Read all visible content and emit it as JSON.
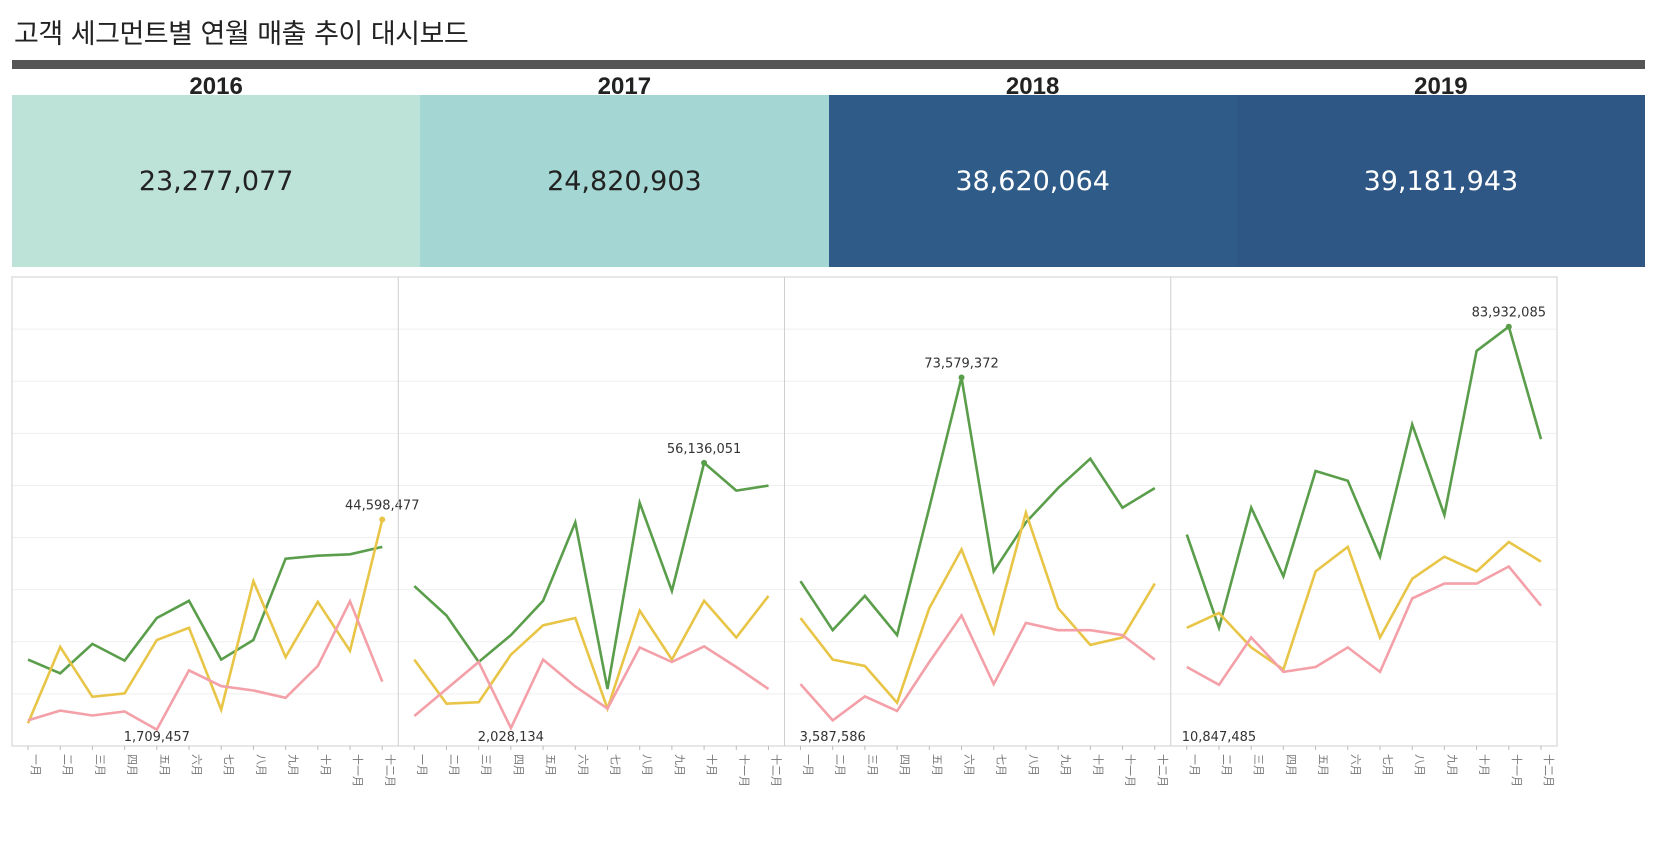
{
  "title": "고객 세그먼트별 연월 매출 추이 대시보드",
  "colors": {
    "topbar": "#555555",
    "kpi_bg": [
      "#bde3d9",
      "#a4d6d3",
      "#2e5b87",
      "#2e5785"
    ],
    "kpi_text": [
      "#222222",
      "#222222",
      "#ffffff",
      "#ffffff"
    ],
    "series": [
      "#5a9e4b",
      "#e8c547",
      "#f4a0a8"
    ]
  },
  "kpis": [
    {
      "year": "2016",
      "value": "23,277,077"
    },
    {
      "year": "2017",
      "value": "24,820,903"
    },
    {
      "year": "2018",
      "value": "38,620,064"
    },
    {
      "year": "2019",
      "value": "39,181,943"
    }
  ],
  "chart_data": {
    "type": "line",
    "ylim": [
      0,
      90000000
    ],
    "grid": "horizontal",
    "months": [
      "一月",
      "二月",
      "三月",
      "四月",
      "五月",
      "六月",
      "七月",
      "八月",
      "九月",
      "十月",
      "十一月",
      "十二月"
    ],
    "panels": [
      {
        "year": "2016",
        "series": [
          {
            "color": "green",
            "values": [
              16000000,
              13200000,
              19200000,
              15800000,
              24500000,
              28000000,
              16000000,
              20000000,
              36600000,
              37200000,
              37500000,
              39000000
            ]
          },
          {
            "color": "yellow",
            "values": [
              3000000,
              18600000,
              8400000,
              9100000,
              20000000,
              22500000,
              5800000,
              32000000,
              16500000,
              27800000,
              17800000,
              44598477
            ]
          },
          {
            "color": "pink",
            "values": [
              3600000,
              5600000,
              4600000,
              5400000,
              1709457,
              13800000,
              10600000,
              9700000,
              8200000,
              14700000,
              27900000,
              11500000
            ]
          }
        ],
        "labels": [
          {
            "text": "44,598,477",
            "series": 1,
            "month": 11
          },
          {
            "text": "1,709,457",
            "series": 2,
            "month": 4
          }
        ]
      },
      {
        "year": "2017",
        "series": [
          {
            "color": "green",
            "values": [
              31000000,
              25000000,
              15500000,
              21000000,
              28000000,
              44000000,
              10000000,
              48000000,
              30000000,
              56136051,
              50500000,
              51500000
            ]
          },
          {
            "color": "yellow",
            "values": [
              16000000,
              7000000,
              7300000,
              17000000,
              23000000,
              24500000,
              6000000,
              26000000,
              16000000,
              28000000,
              20500000,
              29000000
            ]
          },
          {
            "color": "pink",
            "values": [
              4500000,
              10000000,
              15500000,
              2028134,
              16000000,
              10500000,
              6000000,
              18500000,
              15500000,
              18700000,
              14500000,
              10000000
            ]
          }
        ],
        "labels": [
          {
            "text": "56,136,051",
            "series": 0,
            "month": 9
          },
          {
            "text": "2,028,134",
            "series": 2,
            "month": 3
          }
        ]
      },
      {
        "year": "2018",
        "series": [
          {
            "color": "green",
            "values": [
              32000000,
              22000000,
              29000000,
              21000000,
              47000000,
              73579372,
              34000000,
              44000000,
              51000000,
              57000000,
              47000000,
              51000000
            ]
          },
          {
            "color": "yellow",
            "values": [
              24500000,
              16000000,
              14700000,
              7200000,
              26500000,
              38500000,
              21500000,
              46000000,
              26500000,
              19000000,
              20500000,
              31500000
            ]
          },
          {
            "color": "pink",
            "values": [
              11000000,
              3587586,
              8500000,
              5500000,
              15500000,
              25000000,
              11000000,
              23500000,
              22000000,
              22000000,
              21000000,
              16000000
            ]
          }
        ],
        "labels": [
          {
            "text": "73,579,372",
            "series": 0,
            "month": 5
          },
          {
            "text": "3,587,586",
            "series": 2,
            "month": 1
          }
        ]
      },
      {
        "year": "2019",
        "series": [
          {
            "color": "green",
            "values": [
              41500000,
              22500000,
              47000000,
              33000000,
              54500000,
              52500000,
              37000000,
              64000000,
              45500000,
              79000000,
              83932085,
              61000000
            ]
          },
          {
            "color": "yellow",
            "values": [
              22500000,
              25500000,
              18500000,
              14000000,
              34000000,
              39000000,
              20500000,
              32500000,
              37000000,
              34000000,
              40000000,
              36000000
            ]
          },
          {
            "color": "pink",
            "values": [
              14500000,
              10847485,
              20500000,
              13500000,
              14500000,
              18500000,
              13500000,
              28500000,
              31500000,
              31500000,
              35000000,
              27000000
            ]
          }
        ],
        "labels": [
          {
            "text": "83,932,085",
            "series": 0,
            "month": 10
          },
          {
            "text": "10,847,485",
            "series": 2,
            "month": 1
          }
        ]
      }
    ]
  }
}
